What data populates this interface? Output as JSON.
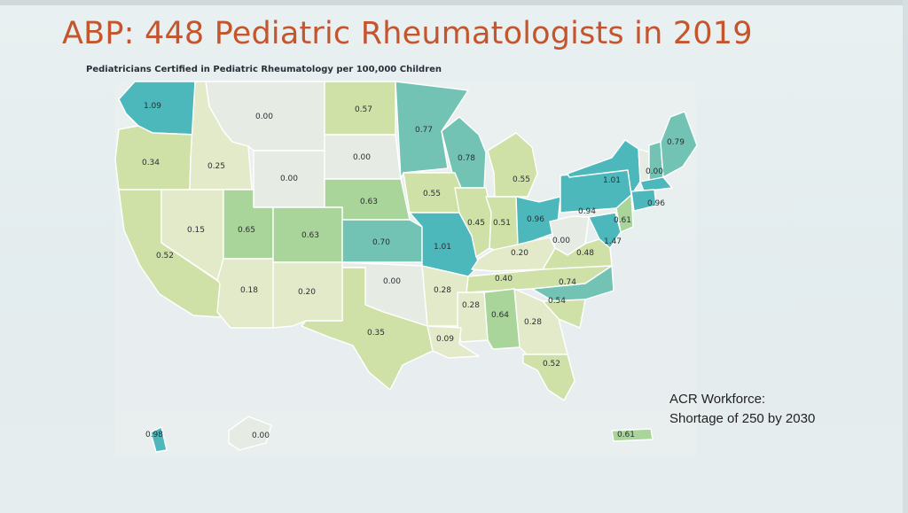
{
  "slide": {
    "title": "ABP:  448 Pediatric Rheumatologists in 2019",
    "subtitle": "Pediatricians Certified in Pediatric Rheumatology per 100,000 Children",
    "note_line1": "ACR Workforce:",
    "note_line2": "Shortage of 250 by 2030"
  },
  "colors": {
    "high": "#4db8bb",
    "mid_high": "#72c3b3",
    "mid": "#a9d49a",
    "low_mid": "#cfe1a6",
    "low": "#e3eac9",
    "zero": "#e6ece4",
    "border": "#ffffff",
    "title": "#c4552d"
  },
  "map": {
    "states": [
      {
        "abbr": "WA",
        "value": "1.09",
        "bucket": "high"
      },
      {
        "abbr": "OR",
        "value": "0.34",
        "bucket": "low_mid"
      },
      {
        "abbr": "ID",
        "value": "0.25",
        "bucket": "low"
      },
      {
        "abbr": "MT",
        "value": "0.00",
        "bucket": "zero"
      },
      {
        "abbr": "WY",
        "value": "0.00",
        "bucket": "zero"
      },
      {
        "abbr": "ND",
        "value": "0.57",
        "bucket": "low_mid"
      },
      {
        "abbr": "SD",
        "value": "0.00",
        "bucket": "zero"
      },
      {
        "abbr": "NE",
        "value": "0.63",
        "bucket": "mid"
      },
      {
        "abbr": "MN",
        "value": "0.77",
        "bucket": "mid_high"
      },
      {
        "abbr": "WI",
        "value": "0.78",
        "bucket": "mid_high"
      },
      {
        "abbr": "MI",
        "value": "0.55",
        "bucket": "low_mid"
      },
      {
        "abbr": "IA",
        "value": "0.55",
        "bucket": "low_mid"
      },
      {
        "abbr": "CA",
        "value": "0.52",
        "bucket": "low_mid"
      },
      {
        "abbr": "NV",
        "value": "0.15",
        "bucket": "low"
      },
      {
        "abbr": "UT",
        "value": "0.65",
        "bucket": "mid"
      },
      {
        "abbr": "CO",
        "value": "0.63",
        "bucket": "mid"
      },
      {
        "abbr": "KS",
        "value": "0.70",
        "bucket": "mid_high"
      },
      {
        "abbr": "MO",
        "value": "1.01",
        "bucket": "high"
      },
      {
        "abbr": "IL",
        "value": "0.45",
        "bucket": "low_mid"
      },
      {
        "abbr": "IN",
        "value": "0.51",
        "bucket": "low_mid"
      },
      {
        "abbr": "OH",
        "value": "0.96",
        "bucket": "high"
      },
      {
        "abbr": "PA",
        "value": "0.94",
        "bucket": "high"
      },
      {
        "abbr": "NY",
        "value": "1.01",
        "bucket": "high"
      },
      {
        "abbr": "VT",
        "value": "0.00",
        "bucket": "zero"
      },
      {
        "abbr": "NH",
        "value": "",
        "bucket": "mid_high"
      },
      {
        "abbr": "ME",
        "value": "0.79",
        "bucket": "mid_high"
      },
      {
        "abbr": "MA",
        "value": "0.96",
        "bucket": "high"
      },
      {
        "abbr": "CT",
        "value": "",
        "bucket": "high"
      },
      {
        "abbr": "NJ",
        "value": "0.61",
        "bucket": "mid"
      },
      {
        "abbr": "MD",
        "value": "1.47",
        "bucket": "high"
      },
      {
        "abbr": "WV",
        "value": "0.00",
        "bucket": "zero"
      },
      {
        "abbr": "VA",
        "value": "0.48",
        "bucket": "low_mid"
      },
      {
        "abbr": "KY",
        "value": "0.20",
        "bucket": "low"
      },
      {
        "abbr": "TN",
        "value": "0.40",
        "bucket": "low_mid"
      },
      {
        "abbr": "NC",
        "value": "0.74",
        "bucket": "mid_high"
      },
      {
        "abbr": "SC",
        "value": "0.54",
        "bucket": "low_mid"
      },
      {
        "abbr": "GA",
        "value": "0.28",
        "bucket": "low"
      },
      {
        "abbr": "AL",
        "value": "0.64",
        "bucket": "mid"
      },
      {
        "abbr": "MS",
        "value": "0.28",
        "bucket": "low"
      },
      {
        "abbr": "AR",
        "value": "0.28",
        "bucket": "low"
      },
      {
        "abbr": "LA",
        "value": "0.09",
        "bucket": "low"
      },
      {
        "abbr": "OK",
        "value": "0.00",
        "bucket": "zero"
      },
      {
        "abbr": "TX",
        "value": "0.35",
        "bucket": "low_mid"
      },
      {
        "abbr": "NM",
        "value": "0.20",
        "bucket": "low"
      },
      {
        "abbr": "AZ",
        "value": "0.18",
        "bucket": "low"
      },
      {
        "abbr": "FL",
        "value": "0.52",
        "bucket": "low_mid"
      },
      {
        "abbr": "HI",
        "value": "0.98",
        "bucket": "high"
      },
      {
        "abbr": "AK",
        "value": "0.00",
        "bucket": "zero"
      },
      {
        "abbr": "PR",
        "value": "0.61",
        "bucket": "mid"
      }
    ]
  }
}
